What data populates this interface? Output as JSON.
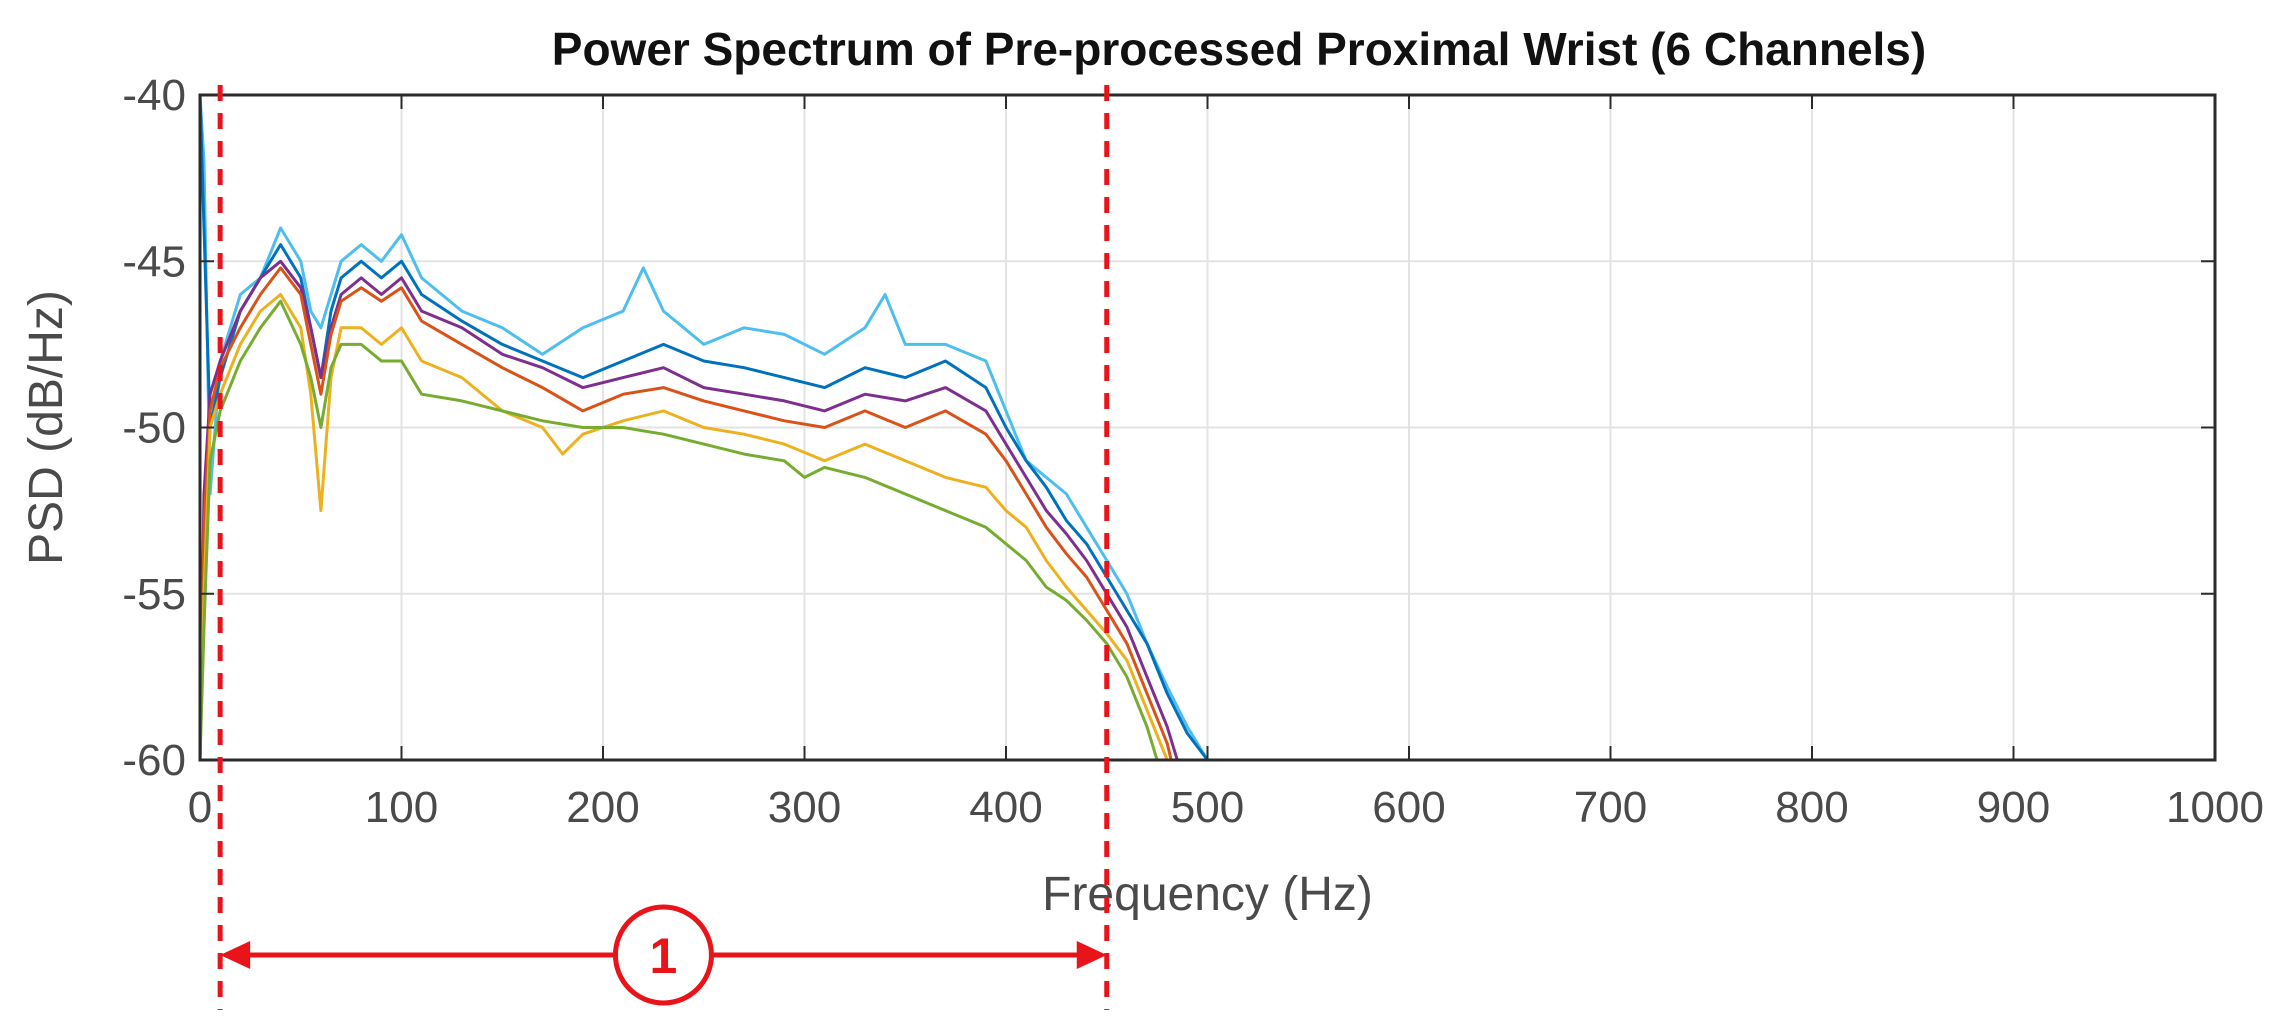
{
  "chart_data": {
    "type": "line",
    "title": "Power Spectrum of Pre-processed Proximal Wrist (6 Channels)",
    "xlabel": "Frequency (Hz)",
    "ylabel": "PSD (dB/Hz)",
    "xlim": [
      0,
      1000
    ],
    "ylim": [
      -60,
      -40
    ],
    "xticks": [
      0,
      100,
      200,
      300,
      400,
      500,
      600,
      700,
      800,
      900,
      1000
    ],
    "yticks": [
      -40,
      -45,
      -50,
      -55,
      -60
    ],
    "grid": true,
    "legend": "none",
    "series": [
      {
        "color": "#4dbeee",
        "points": [
          [
            0,
            -40
          ],
          [
            2,
            -42
          ],
          [
            5,
            -52
          ],
          [
            10,
            -48
          ],
          [
            20,
            -46
          ],
          [
            30,
            -45.5
          ],
          [
            40,
            -44
          ],
          [
            50,
            -45
          ],
          [
            55,
            -46.5
          ],
          [
            60,
            -47
          ],
          [
            65,
            -46
          ],
          [
            70,
            -45
          ],
          [
            80,
            -44.5
          ],
          [
            90,
            -45
          ],
          [
            100,
            -44.2
          ],
          [
            110,
            -45.5
          ],
          [
            130,
            -46.5
          ],
          [
            150,
            -47
          ],
          [
            170,
            -47.8
          ],
          [
            190,
            -47
          ],
          [
            210,
            -46.5
          ],
          [
            220,
            -45.2
          ],
          [
            230,
            -46.5
          ],
          [
            250,
            -47.5
          ],
          [
            270,
            -47
          ],
          [
            290,
            -47.2
          ],
          [
            310,
            -47.8
          ],
          [
            330,
            -47
          ],
          [
            340,
            -46
          ],
          [
            350,
            -47.5
          ],
          [
            370,
            -47.5
          ],
          [
            390,
            -48
          ],
          [
            400,
            -49.5
          ],
          [
            410,
            -51
          ],
          [
            420,
            -51.5
          ],
          [
            430,
            -52
          ],
          [
            440,
            -53
          ],
          [
            450,
            -54
          ],
          [
            460,
            -55
          ],
          [
            470,
            -56.5
          ],
          [
            480,
            -57.8
          ],
          [
            490,
            -59
          ],
          [
            500,
            -60
          ]
        ]
      },
      {
        "color": "#0072bd",
        "points": [
          [
            0,
            -40
          ],
          [
            2,
            -44
          ],
          [
            5,
            -50
          ],
          [
            10,
            -48.5
          ],
          [
            20,
            -46.5
          ],
          [
            30,
            -45.5
          ],
          [
            40,
            -44.5
          ],
          [
            50,
            -45.5
          ],
          [
            55,
            -47
          ],
          [
            60,
            -48.5
          ],
          [
            65,
            -46.5
          ],
          [
            70,
            -45.5
          ],
          [
            80,
            -45
          ],
          [
            90,
            -45.5
          ],
          [
            100,
            -45
          ],
          [
            110,
            -46
          ],
          [
            130,
            -46.8
          ],
          [
            150,
            -47.5
          ],
          [
            170,
            -48
          ],
          [
            190,
            -48.5
          ],
          [
            210,
            -48
          ],
          [
            230,
            -47.5
          ],
          [
            250,
            -48
          ],
          [
            270,
            -48.2
          ],
          [
            290,
            -48.5
          ],
          [
            310,
            -48.8
          ],
          [
            330,
            -48.2
          ],
          [
            350,
            -48.5
          ],
          [
            370,
            -48
          ],
          [
            390,
            -48.8
          ],
          [
            400,
            -50
          ],
          [
            410,
            -51
          ],
          [
            420,
            -51.8
          ],
          [
            430,
            -52.8
          ],
          [
            440,
            -53.5
          ],
          [
            450,
            -54.5
          ],
          [
            460,
            -55.5
          ],
          [
            470,
            -56.5
          ],
          [
            480,
            -58
          ],
          [
            490,
            -59.2
          ],
          [
            500,
            -60
          ]
        ]
      },
      {
        "color": "#7e2f8e",
        "points": [
          [
            0,
            -60
          ],
          [
            2,
            -52
          ],
          [
            5,
            -49
          ],
          [
            10,
            -48
          ],
          [
            20,
            -46.5
          ],
          [
            30,
            -45.5
          ],
          [
            40,
            -45
          ],
          [
            50,
            -45.8
          ],
          [
            55,
            -47
          ],
          [
            60,
            -48.5
          ],
          [
            65,
            -47
          ],
          [
            70,
            -46
          ],
          [
            80,
            -45.5
          ],
          [
            90,
            -46
          ],
          [
            100,
            -45.5
          ],
          [
            110,
            -46.5
          ],
          [
            130,
            -47
          ],
          [
            150,
            -47.8
          ],
          [
            170,
            -48.2
          ],
          [
            190,
            -48.8
          ],
          [
            210,
            -48.5
          ],
          [
            230,
            -48.2
          ],
          [
            250,
            -48.8
          ],
          [
            270,
            -49
          ],
          [
            290,
            -49.2
          ],
          [
            310,
            -49.5
          ],
          [
            330,
            -49
          ],
          [
            350,
            -49.2
          ],
          [
            370,
            -48.8
          ],
          [
            390,
            -49.5
          ],
          [
            400,
            -50.5
          ],
          [
            410,
            -51.5
          ],
          [
            420,
            -52.5
          ],
          [
            430,
            -53.2
          ],
          [
            440,
            -54
          ],
          [
            450,
            -55
          ],
          [
            460,
            -56
          ],
          [
            470,
            -57.5
          ],
          [
            480,
            -59
          ],
          [
            485,
            -60
          ]
        ]
      },
      {
        "color": "#d95319",
        "points": [
          [
            0,
            -60
          ],
          [
            2,
            -53
          ],
          [
            5,
            -49.5
          ],
          [
            10,
            -48.2
          ],
          [
            20,
            -47
          ],
          [
            30,
            -46
          ],
          [
            40,
            -45.2
          ],
          [
            50,
            -46
          ],
          [
            55,
            -47.5
          ],
          [
            60,
            -49
          ],
          [
            65,
            -47.2
          ],
          [
            70,
            -46.2
          ],
          [
            80,
            -45.8
          ],
          [
            90,
            -46.2
          ],
          [
            100,
            -45.8
          ],
          [
            110,
            -46.8
          ],
          [
            130,
            -47.5
          ],
          [
            150,
            -48.2
          ],
          [
            170,
            -48.8
          ],
          [
            190,
            -49.5
          ],
          [
            210,
            -49
          ],
          [
            230,
            -48.8
          ],
          [
            250,
            -49.2
          ],
          [
            270,
            -49.5
          ],
          [
            290,
            -49.8
          ],
          [
            310,
            -50
          ],
          [
            330,
            -49.5
          ],
          [
            350,
            -50
          ],
          [
            370,
            -49.5
          ],
          [
            390,
            -50.2
          ],
          [
            400,
            -51
          ],
          [
            410,
            -52
          ],
          [
            420,
            -53
          ],
          [
            430,
            -53.8
          ],
          [
            440,
            -54.5
          ],
          [
            450,
            -55.5
          ],
          [
            460,
            -56.5
          ],
          [
            470,
            -58
          ],
          [
            480,
            -59.5
          ],
          [
            482,
            -60
          ]
        ]
      },
      {
        "color": "#edb120",
        "points": [
          [
            0,
            -60
          ],
          [
            2,
            -55
          ],
          [
            5,
            -50
          ],
          [
            10,
            -49
          ],
          [
            20,
            -47.5
          ],
          [
            30,
            -46.5
          ],
          [
            40,
            -46
          ],
          [
            50,
            -47
          ],
          [
            55,
            -49
          ],
          [
            60,
            -52.5
          ],
          [
            65,
            -48.5
          ],
          [
            70,
            -47
          ],
          [
            80,
            -47
          ],
          [
            90,
            -47.5
          ],
          [
            100,
            -47
          ],
          [
            110,
            -48
          ],
          [
            130,
            -48.5
          ],
          [
            150,
            -49.5
          ],
          [
            170,
            -50
          ],
          [
            180,
            -50.8
          ],
          [
            190,
            -50.2
          ],
          [
            210,
            -49.8
          ],
          [
            230,
            -49.5
          ],
          [
            250,
            -50
          ],
          [
            270,
            -50.2
          ],
          [
            290,
            -50.5
          ],
          [
            310,
            -51
          ],
          [
            330,
            -50.5
          ],
          [
            350,
            -51
          ],
          [
            370,
            -51.5
          ],
          [
            390,
            -51.8
          ],
          [
            400,
            -52.5
          ],
          [
            410,
            -53
          ],
          [
            420,
            -54
          ],
          [
            430,
            -54.8
          ],
          [
            440,
            -55.5
          ],
          [
            450,
            -56.2
          ],
          [
            460,
            -57
          ],
          [
            470,
            -58.5
          ],
          [
            480,
            -60
          ]
        ]
      },
      {
        "color": "#77ac30",
        "points": [
          [
            0,
            -60
          ],
          [
            2,
            -56
          ],
          [
            5,
            -51
          ],
          [
            10,
            -49.5
          ],
          [
            20,
            -48
          ],
          [
            30,
            -47
          ],
          [
            40,
            -46.2
          ],
          [
            50,
            -47.5
          ],
          [
            55,
            -48.5
          ],
          [
            60,
            -50
          ],
          [
            65,
            -48.2
          ],
          [
            70,
            -47.5
          ],
          [
            80,
            -47.5
          ],
          [
            90,
            -48
          ],
          [
            100,
            -48
          ],
          [
            110,
            -49
          ],
          [
            130,
            -49.2
          ],
          [
            150,
            -49.5
          ],
          [
            170,
            -49.8
          ],
          [
            190,
            -50
          ],
          [
            210,
            -50
          ],
          [
            230,
            -50.2
          ],
          [
            250,
            -50.5
          ],
          [
            270,
            -50.8
          ],
          [
            290,
            -51
          ],
          [
            300,
            -51.5
          ],
          [
            310,
            -51.2
          ],
          [
            330,
            -51.5
          ],
          [
            350,
            -52
          ],
          [
            370,
            -52.5
          ],
          [
            390,
            -53
          ],
          [
            400,
            -53.5
          ],
          [
            410,
            -54
          ],
          [
            420,
            -54.8
          ],
          [
            430,
            -55.2
          ],
          [
            440,
            -55.8
          ],
          [
            450,
            -56.5
          ],
          [
            460,
            -57.5
          ],
          [
            470,
            -59
          ],
          [
            475,
            -60
          ]
        ]
      }
    ],
    "annotations": {
      "range_left_hz": 10,
      "range_right_hz": 450,
      "marker_label": "1"
    }
  }
}
